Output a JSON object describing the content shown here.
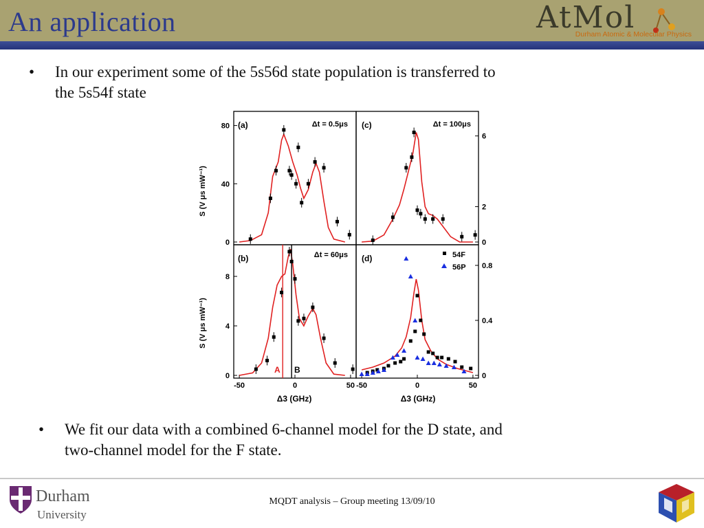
{
  "slide": {
    "title": "An application",
    "bullets": [
      {
        "bullet_char": "•",
        "text_line1": "In our experiment some of the 5s56d state population is transferred to",
        "text_line2": "the 5s54f state"
      },
      {
        "bullet_char": "•",
        "text_line1": "We fit our data with a combined 6-channel model for the D state, and",
        "text_line2": "two-channel model for the F state."
      }
    ],
    "footer_text": "MQDT analysis – Group meeting  13/09/10"
  },
  "logos": {
    "atmol_word": "AtMol",
    "atmol_sub": "Durham Atomic & Molecular Physics",
    "durham_name": "Durham",
    "durham_university": "University",
    "cube_icon": "cube-logo-icon"
  },
  "colors": {
    "header_bg": "#a9a271",
    "header_stripe": "#2f3d86",
    "title": "#2c3a8c",
    "fit_line": "#e02020",
    "series_54F": "#000000",
    "series_56P": "#1a2fe0"
  },
  "figure": {
    "panel_labels": [
      "(a)",
      "(b)",
      "(c)",
      "(d)"
    ],
    "dt_labels": [
      "Δt = 0.5μs",
      "Δt = 60μs",
      "Δt = 100μs"
    ],
    "left_ylabel_top": "S (V μs mW⁻¹)",
    "left_ylabel_bottom": "S (V μs mW⁻¹)",
    "xlabel": "Δ3 (GHz)",
    "marker_labels": [
      "A",
      "B"
    ],
    "legend": [
      "54F",
      "56P"
    ]
  },
  "chart_data": [
    {
      "type": "scatter",
      "panel": "(a)",
      "annotation": "Δt = 0.5μs",
      "ylabel": "S (V μs mW⁻¹)",
      "xlim": [
        -55,
        55
      ],
      "ylim": [
        0,
        85
      ],
      "yticks": [
        0,
        40,
        80
      ],
      "points": [
        [
          -40,
          2
        ],
        [
          -22,
          30
        ],
        [
          -17,
          49
        ],
        [
          -10,
          77
        ],
        [
          -5,
          49
        ],
        [
          -3,
          46
        ],
        [
          1,
          40
        ],
        [
          3,
          65
        ],
        [
          6,
          27
        ],
        [
          12,
          40
        ],
        [
          18,
          55
        ],
        [
          26,
          51
        ],
        [
          38,
          14
        ],
        [
          49,
          5
        ]
      ],
      "fit": [
        [
          -50,
          0
        ],
        [
          -40,
          1
        ],
        [
          -30,
          5
        ],
        [
          -24,
          20
        ],
        [
          -20,
          45
        ],
        [
          -15,
          55
        ],
        [
          -12,
          70
        ],
        [
          -10,
          74
        ],
        [
          -6,
          66
        ],
        [
          -2,
          55
        ],
        [
          2,
          46
        ],
        [
          5,
          37
        ],
        [
          8,
          30
        ],
        [
          12,
          36
        ],
        [
          16,
          48
        ],
        [
          19,
          54
        ],
        [
          22,
          48
        ],
        [
          26,
          28
        ],
        [
          30,
          10
        ],
        [
          35,
          2
        ],
        [
          45,
          0
        ]
      ]
    },
    {
      "type": "scatter",
      "panel": "(b)",
      "annotation": "Δt = 60μs",
      "ylabel": "S (V μs mW⁻¹)",
      "xlim": [
        -55,
        55
      ],
      "ylim": [
        0,
        10
      ],
      "yticks": [
        0,
        4,
        8
      ],
      "xticks": [
        -50,
        0,
        50
      ],
      "xlabel": "Δ3 (GHz)",
      "points": [
        [
          -35,
          0.5
        ],
        [
          -25,
          1.2
        ],
        [
          -19,
          3.1
        ],
        [
          -12,
          6.7
        ],
        [
          -5,
          10
        ],
        [
          -3,
          9.2
        ],
        [
          0,
          7.8
        ],
        [
          3,
          4.4
        ],
        [
          8,
          4.6
        ],
        [
          16,
          5.5
        ],
        [
          26,
          3
        ],
        [
          36,
          1
        ],
        [
          52,
          0.5
        ]
      ],
      "fit": [
        [
          -50,
          0
        ],
        [
          -38,
          0.2
        ],
        [
          -30,
          1
        ],
        [
          -24,
          3
        ],
        [
          -20,
          5.5
        ],
        [
          -16,
          7.3
        ],
        [
          -12,
          8
        ],
        [
          -9,
          8.2
        ],
        [
          -6,
          9.6
        ],
        [
          -4,
          10.2
        ],
        [
          -2,
          9
        ],
        [
          1,
          6.5
        ],
        [
          4,
          4.6
        ],
        [
          8,
          4
        ],
        [
          12,
          4.8
        ],
        [
          16,
          5.4
        ],
        [
          19,
          4.9
        ],
        [
          23,
          3
        ],
        [
          28,
          1
        ],
        [
          35,
          0.1
        ],
        [
          45,
          0
        ]
      ],
      "markers": [
        {
          "label": "A",
          "x": -11
        },
        {
          "label": "B",
          "x": -3
        }
      ]
    },
    {
      "type": "scatter",
      "panel": "(c)",
      "annotation": "Δt = 100μs",
      "xlim": [
        -55,
        55
      ],
      "ylim": [
        0,
        7
      ],
      "yticks_right": [
        0,
        2,
        6
      ],
      "points": [
        [
          -40,
          0.1
        ],
        [
          -22,
          1.4
        ],
        [
          -10,
          4.2
        ],
        [
          -5,
          4.8
        ],
        [
          -3,
          6.2
        ],
        [
          0,
          1.8
        ],
        [
          3,
          1.6
        ],
        [
          7,
          1.3
        ],
        [
          14,
          1.3
        ],
        [
          23,
          1.3
        ],
        [
          40,
          0.3
        ],
        [
          52,
          0.4
        ]
      ],
      "fit": [
        [
          -50,
          0
        ],
        [
          -40,
          0.05
        ],
        [
          -30,
          0.4
        ],
        [
          -22,
          1.3
        ],
        [
          -16,
          2.1
        ],
        [
          -12,
          3
        ],
        [
          -8,
          4
        ],
        [
          -4,
          5
        ],
        [
          -1,
          6.2
        ],
        [
          1,
          5.8
        ],
        [
          4,
          3.4
        ],
        [
          7,
          2
        ],
        [
          10,
          1.6
        ],
        [
          14,
          1.5
        ],
        [
          18,
          1.3
        ],
        [
          24,
          0.8
        ],
        [
          30,
          0.3
        ],
        [
          38,
          0
        ],
        [
          50,
          0
        ]
      ]
    },
    {
      "type": "scatter",
      "panel": "(d)",
      "legend": [
        "54F",
        "56P"
      ],
      "xlabel": "Δ3 (GHz)",
      "xlim": [
        -55,
        55
      ],
      "ylim": [
        0,
        0.9
      ],
      "xticks": [
        -50,
        0,
        50
      ],
      "yticks_right": [
        0,
        0.4,
        0.8
      ],
      "series": [
        {
          "name": "54F",
          "points": [
            [
              -45,
              0.02
            ],
            [
              -40,
              0.03
            ],
            [
              -36,
              0.04
            ],
            [
              -30,
              0.05
            ],
            [
              -26,
              0.07
            ],
            [
              -20,
              0.09
            ],
            [
              -15,
              0.1
            ],
            [
              -12,
              0.12
            ],
            [
              -6,
              0.25
            ],
            [
              -2,
              0.32
            ],
            [
              0,
              0.58
            ],
            [
              3,
              0.4
            ],
            [
              6,
              0.3
            ],
            [
              10,
              0.17
            ],
            [
              14,
              0.16
            ],
            [
              18,
              0.13
            ],
            [
              22,
              0.13
            ],
            [
              28,
              0.12
            ],
            [
              34,
              0.1
            ],
            [
              40,
              0.06
            ],
            [
              48,
              0.05
            ]
          ]
        },
        {
          "name": "56P",
          "points": [
            [
              -50,
              0.01
            ],
            [
              -45,
              0.01
            ],
            [
              -40,
              0.02
            ],
            [
              -35,
              0.03
            ],
            [
              -30,
              0.04
            ],
            [
              -22,
              0.13
            ],
            [
              -18,
              0.15
            ],
            [
              -12,
              0.18
            ],
            [
              -10,
              0.85
            ],
            [
              -6,
              0.72
            ],
            [
              -2,
              0.4
            ],
            [
              0,
              0.13
            ],
            [
              5,
              0.12
            ],
            [
              10,
              0.09
            ],
            [
              15,
              0.09
            ],
            [
              20,
              0.08
            ],
            [
              26,
              0.07
            ],
            [
              33,
              0.06
            ],
            [
              42,
              0.03
            ]
          ]
        }
      ],
      "fit": [
        [
          -50,
          0.04
        ],
        [
          -40,
          0.06
        ],
        [
          -30,
          0.09
        ],
        [
          -20,
          0.14
        ],
        [
          -14,
          0.2
        ],
        [
          -10,
          0.28
        ],
        [
          -6,
          0.42
        ],
        [
          -3,
          0.6
        ],
        [
          -1,
          0.7
        ],
        [
          1,
          0.62
        ],
        [
          4,
          0.4
        ],
        [
          7,
          0.26
        ],
        [
          12,
          0.18
        ],
        [
          18,
          0.12
        ],
        [
          26,
          0.08
        ],
        [
          36,
          0.05
        ],
        [
          50,
          0.02
        ]
      ]
    }
  ]
}
